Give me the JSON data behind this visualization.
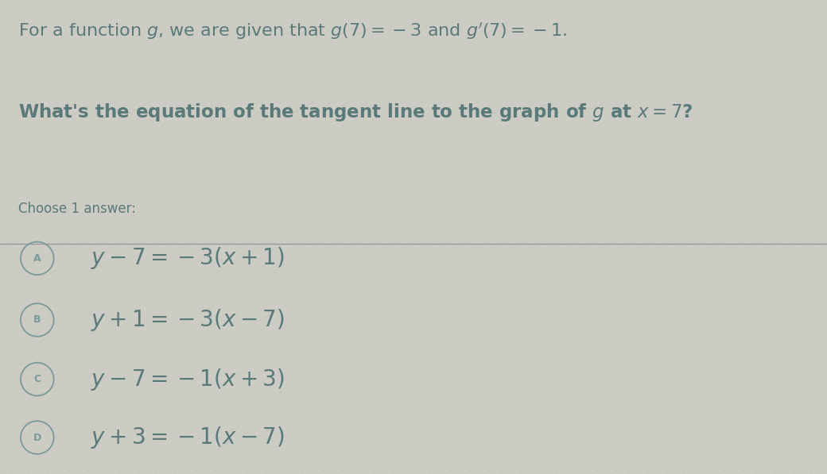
{
  "bg_color": "#cccbc4",
  "text_color": "#5a7a7a",
  "title_line1_plain": "For a function ",
  "title_line1_math": "$g$, we are given that $g(7)=-3$ and $g'(7)=-1$.",
  "title_line2": "What's the equation of the tangent line to the graph of $g$ at $x=7$?",
  "choose_label": "Choose 1 answer:",
  "separator_color": "#999999",
  "answers": [
    {
      "label": "A",
      "text": "$y-7=-3(x+1)$"
    },
    {
      "label": "B",
      "text": "$y+1=-3(x-7)$"
    },
    {
      "label": "C",
      "text": "$y-7=-1(x+3)$"
    },
    {
      "label": "D",
      "text": "$y+3=-1(x-7)$"
    }
  ],
  "circle_color": "#7a9a9a",
  "title_fontsize": 16,
  "bold_fontsize": 16.5,
  "choose_fontsize": 12,
  "answer_fontsize": 20,
  "diag_color": "#c4c3bc",
  "diag_alpha": 0.8
}
